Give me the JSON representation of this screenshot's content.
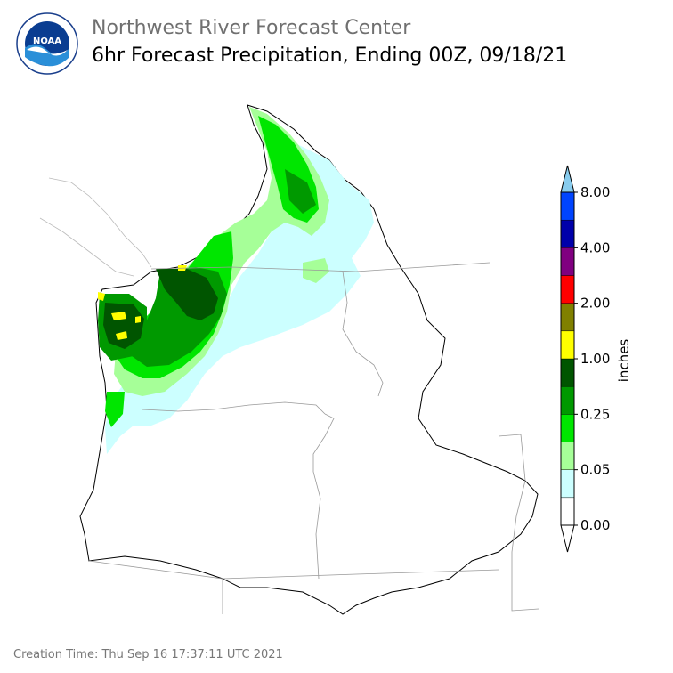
{
  "header": {
    "organization": "Northwest River Forecast Center",
    "product": "6hr Forecast Precipitation, Ending 00Z, 09/18/21",
    "logo_text": "NOAA",
    "logo_ring_text": "NATIONAL OCEANIC AND ATMOSPHERIC ADMINISTRATION · U.S. DEPARTMENT OF COMMERCE"
  },
  "legend": {
    "unit_label": "inches",
    "tick_labels": [
      "8.00",
      "4.00",
      "2.00",
      "1.00",
      "0.25",
      "0.05",
      "0.00"
    ],
    "bins": [
      {
        "color": "#ffffff"
      },
      {
        "color": "#ccffff"
      },
      {
        "color": "#a6ff98"
      },
      {
        "color": "#00e600"
      },
      {
        "color": "#009900"
      },
      {
        "color": "#005500"
      },
      {
        "color": "#ffff00"
      },
      {
        "color": "#808000"
      },
      {
        "color": "#ff0000"
      },
      {
        "color": "#800080"
      },
      {
        "color": "#0000aa"
      },
      {
        "color": "#0044ff"
      }
    ],
    "over_color": "#88ccee",
    "under_color": "#ffffff"
  },
  "footer": {
    "creation_time": "Creation Time: Thu Sep 16 17:37:11 UTC 2021"
  }
}
